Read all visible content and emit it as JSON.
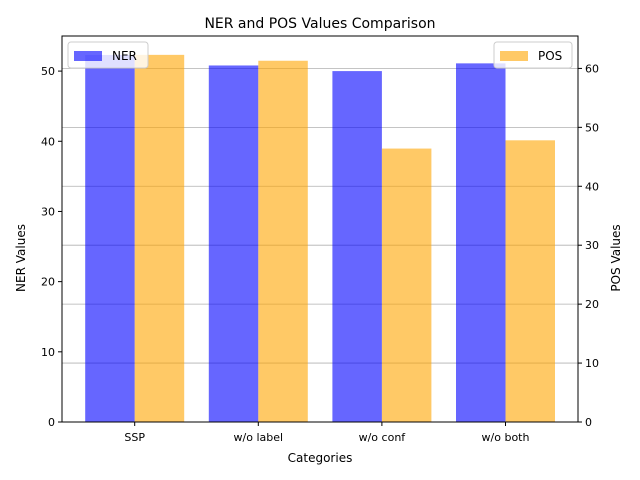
{
  "chart_data": {
    "type": "bar",
    "title": "NER and POS Values Comparison",
    "xlabel": "Categories",
    "categories": [
      "SSP",
      "w/o label",
      "w/o conf",
      "w/o both"
    ],
    "series": [
      {
        "name": "NER",
        "axis": "left",
        "color": "#0000ff",
        "opacity": 0.6,
        "values": [
          52.3,
          50.8,
          50.0,
          51.1
        ]
      },
      {
        "name": "POS",
        "axis": "right",
        "color": "#ffa500",
        "opacity": 0.6,
        "values": [
          62.3,
          61.3,
          46.4,
          47.8
        ]
      }
    ],
    "y_left": {
      "label": "NER Values",
      "label_color": "#0000ff",
      "ylim": [
        0,
        55
      ],
      "ticks": [
        0,
        10,
        20,
        30,
        40,
        50
      ]
    },
    "y_right": {
      "label": "POS Values",
      "label_color": "#ffa500",
      "ylim": [
        0,
        65.5
      ],
      "ticks": [
        0,
        10,
        20,
        30,
        40,
        50,
        60
      ]
    },
    "grid": "horizontal (right axis)",
    "legend_left": "upper left",
    "legend_right": "upper right"
  }
}
